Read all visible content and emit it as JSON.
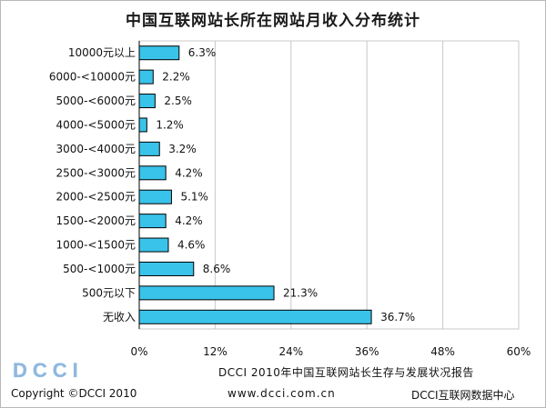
{
  "chart_data": {
    "type": "bar",
    "orientation": "horizontal",
    "title": "中国互联网站长所在网站月收入分布统计",
    "categories": [
      "10000元以上",
      "6000-<10000元",
      "5000-<6000元",
      "4000-<5000元",
      "3000-<4000元",
      "2500-<3000元",
      "2000-<2500元",
      "1500-<2000元",
      "1000-<1500元",
      "500-<1000元",
      "500元以下",
      "无收入"
    ],
    "values": [
      6.3,
      2.2,
      2.5,
      1.2,
      3.2,
      4.2,
      5.1,
      4.2,
      4.6,
      8.6,
      21.3,
      36.7
    ],
    "value_labels": [
      "6.3%",
      "2.2%",
      "2.5%",
      "1.2%",
      "3.2%",
      "4.2%",
      "5.1%",
      "4.2%",
      "4.6%",
      "8.6%",
      "21.3%",
      "36.7%"
    ],
    "xlim": [
      0,
      60
    ],
    "xticks": [
      0,
      12,
      24,
      36,
      48,
      60
    ],
    "xtick_labels": [
      "0%",
      "12%",
      "24%",
      "36%",
      "48%",
      "60%"
    ],
    "grid": true,
    "legend": "none",
    "bar_color": "#39c3ea",
    "bar_edge_color": "#000000"
  },
  "footer": {
    "logo_text": "DCCI",
    "report": "DCCI 2010年中国互联网站长生存与发展状况报告",
    "copyright": "Copyright ©DCCI 2010",
    "url": "www.dcci.com.cn",
    "center": "DCCI互联网数据中心"
  },
  "colors": {
    "logo": "#8fb8de",
    "gridline": "#c8c8c8"
  }
}
